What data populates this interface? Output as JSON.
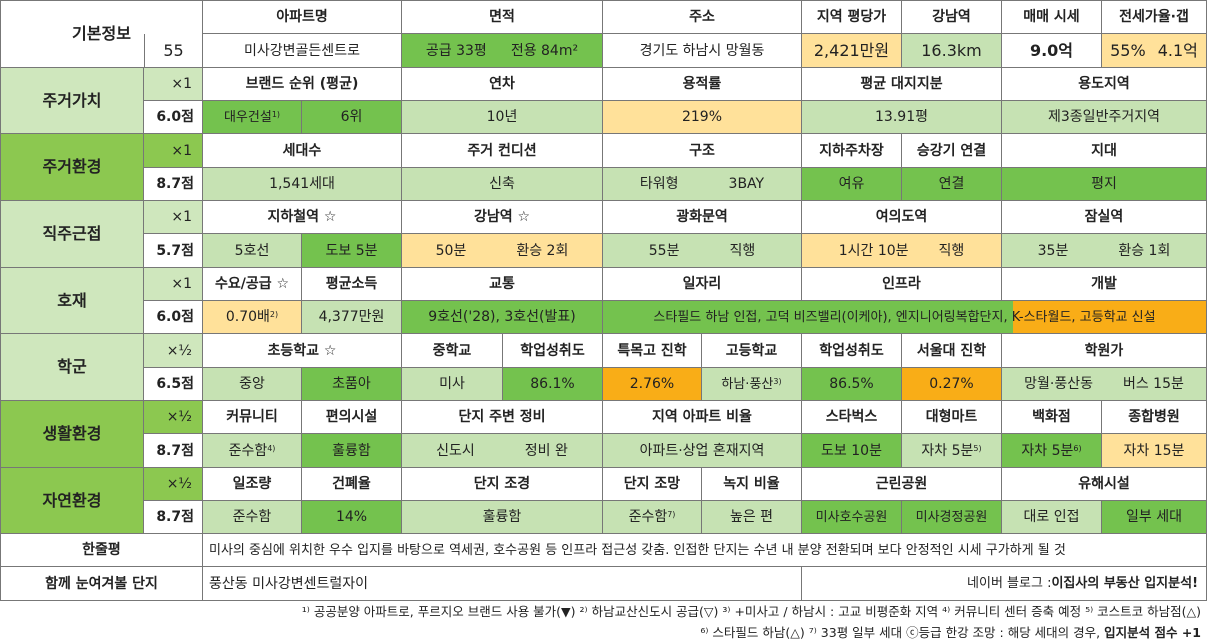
{
  "colors": {
    "sec_dark": "#8cc850",
    "sec_light": "#cfe7bd",
    "val_green": "#74c24e",
    "val_light": "#c6e2b3",
    "val_yellow": "#ffe19a",
    "val_orange": "#f9ad17",
    "white": "#ffffff",
    "border": "#777777"
  },
  "basic": {
    "label": "기본정보",
    "number": "55",
    "apt_h": "아파트명",
    "apt_v": "미사강변골든센트로",
    "area_h": "면적",
    "area_supply": "공급 33평",
    "area_exclusive": "전용 84m²",
    "addr_h": "주소",
    "addr_v": "경기도 하남시 망월동",
    "price_h": "지역 평당가",
    "price_v": "2,421만원",
    "gn_h": "강남역",
    "gn_v": "16.3km",
    "sale_h": "매매 시세",
    "sale_v": "9.0억",
    "jeonse_h": "전세가율·갭",
    "jeonse_rate": "55%",
    "jeonse_gap": "4.1억"
  },
  "living_value": {
    "label": "주거가치",
    "mult": "×1",
    "score": "6.0점",
    "brand_h": "브랜드 순위 (평균)",
    "brand_name": "대우건설",
    "brand_note": "1)",
    "brand_rank": "6위",
    "age_h": "연차",
    "age_v": "10년",
    "far_h": "용적률",
    "far_v": "219%",
    "land_h": "평균 대지지분",
    "land_v": "13.91평",
    "zone_h": "용도지역",
    "zone_v": "제3종일반주거지역"
  },
  "living_env": {
    "label": "주거환경",
    "mult": "×1",
    "score": "8.7점",
    "hh_h": "세대수",
    "hh_v": "1,541세대",
    "cond_h": "주거 컨디션",
    "cond_v": "신축",
    "struct_h": "구조",
    "struct_type": "타워형",
    "struct_bay": "3BAY",
    "park_h": "지하주차장",
    "park_v": "여유",
    "elev_h": "승강기 연결",
    "elev_v": "연결",
    "terrain_h": "지대",
    "terrain_v": "평지"
  },
  "commute": {
    "label": "직주근접",
    "mult": "×1",
    "score": "5.7점",
    "subway_h": "지하철역 ☆",
    "subway_line": "5호선",
    "subway_walk": "도보 5분",
    "gangnam_h": "강남역 ☆",
    "gangnam_time": "50분",
    "gangnam_tr": "환승 2회",
    "gwh_h": "광화문역",
    "gwh_time": "55분",
    "gwh_tr": "직행",
    "yid_h": "여의도역",
    "yid_time": "1시간 10분",
    "yid_tr": "직행",
    "jamsil_h": "잠실역",
    "jamsil_time": "35분",
    "jamsil_tr": "환승 1회"
  },
  "development": {
    "label": "호재",
    "mult": "×1",
    "score": "6.0점",
    "supply_h": "수요/공급 ☆",
    "supply_v": "0.70배",
    "supply_note": "2)",
    "income_h": "평균소득",
    "income_v": "4,377만원",
    "traffic_h": "교통",
    "traffic_v": "9호선('28), 3호선(발표)",
    "job_h": "일자리",
    "infra_h": "인프라",
    "dev_h": "개발",
    "job_v": "스타필드 하남 인접, 고덕 비즈밸리(이케아), 엔지니어링복합단지, K-스타월드, 고등학교 신설"
  },
  "school": {
    "label": "학군",
    "mult": "×½",
    "score": "6.5점",
    "elem_h": "초등학교 ☆",
    "elem_name": "중앙",
    "elem_type": "초품아",
    "mid_h": "중학교",
    "mid_v": "미사",
    "mid_rate_h": "학업성취도",
    "mid_rate_v": "86.1%",
    "special_h": "특목고 진학",
    "special_v": "2.76%",
    "high_h": "고등학교",
    "high_v": "하남·풍산",
    "high_note": "3)",
    "high_rate_h": "학업성취도",
    "high_rate_v": "86.5%",
    "snu_h": "서울대 진학",
    "snu_v": "0.27%",
    "academy_h": "학원가",
    "academy_area": "망월·풍산동",
    "academy_bus": "버스 15분"
  },
  "life_env": {
    "label": "생활환경",
    "mult": "×½",
    "score": "8.7점",
    "comm_h": "커뮤니티",
    "comm_v": "준수함",
    "comm_note": "4)",
    "conv_h": "편의시설",
    "conv_v": "훌륭함",
    "around_h": "단지 주변 정비",
    "around_type": "신도시",
    "around_state": "정비 완",
    "ratio_h": "지역 아파트 비율",
    "ratio_v": "아파트·상업 혼재지역",
    "sb_h": "스타벅스",
    "sb_v": "도보 10분",
    "mart_h": "대형마트",
    "mart_v": "자차 5분",
    "mart_note": "5)",
    "dept_h": "백화점",
    "dept_v": "자차 5분",
    "dept_note": "6)",
    "hosp_h": "종합병원",
    "hosp_v": "자차 15분"
  },
  "nature_env": {
    "label": "자연환경",
    "mult": "×½",
    "score": "8.7점",
    "sun_h": "일조량",
    "sun_v": "준수함",
    "bcr_h": "건폐율",
    "bcr_v": "14%",
    "land_h": "단지 조경",
    "land_v": "훌륭함",
    "view_h": "단지 조망",
    "view_v": "준수함",
    "view_note": "7)",
    "green_h": "녹지 비율",
    "green_v": "높은 편",
    "park_h": "근린공원",
    "park_1": "미사호수공원",
    "park_2": "미사경정공원",
    "harm_h": "유해시설",
    "harm_1": "대로 인접",
    "harm_2": "일부 세대"
  },
  "summary": {
    "label": "한줄평",
    "text": "미사의 중심에 위치한 우수 입지를 바탕으로 역세권, 호수공원 등 인프라 접근성 갖춤. 인접한 단지는 수년 내 분양 전환되며 보다 안정적인 시세 구가하게 될 것",
    "together_label": "함께 눈여겨볼 단지",
    "together_v": "풍산동 미사강변센트럴자이",
    "blog_prefix": "네이버 블로그 : ",
    "blog_name": "이집사의 부동산 입지분석!"
  },
  "footnotes": {
    "line1": "¹⁾ 공공분양 아파트로, 푸르지오 브랜드 사용 불가(▼) ²⁾ 하남교산신도시 공급(▽) ³⁾ +미사고 / 하남시 : 고교 비평준화 지역 ⁴⁾ 커뮤니티 센터 증축 예정 ⁵⁾ 코스트코 하남점(△)",
    "line2_a": "⁶⁾ 스타필드 하남(△) ⁷⁾ 33평 일부 세대 ⓒ등급 한강 조망 : 해당 세대의 경우, ",
    "line2_b": "입지분석 점수 +1"
  }
}
